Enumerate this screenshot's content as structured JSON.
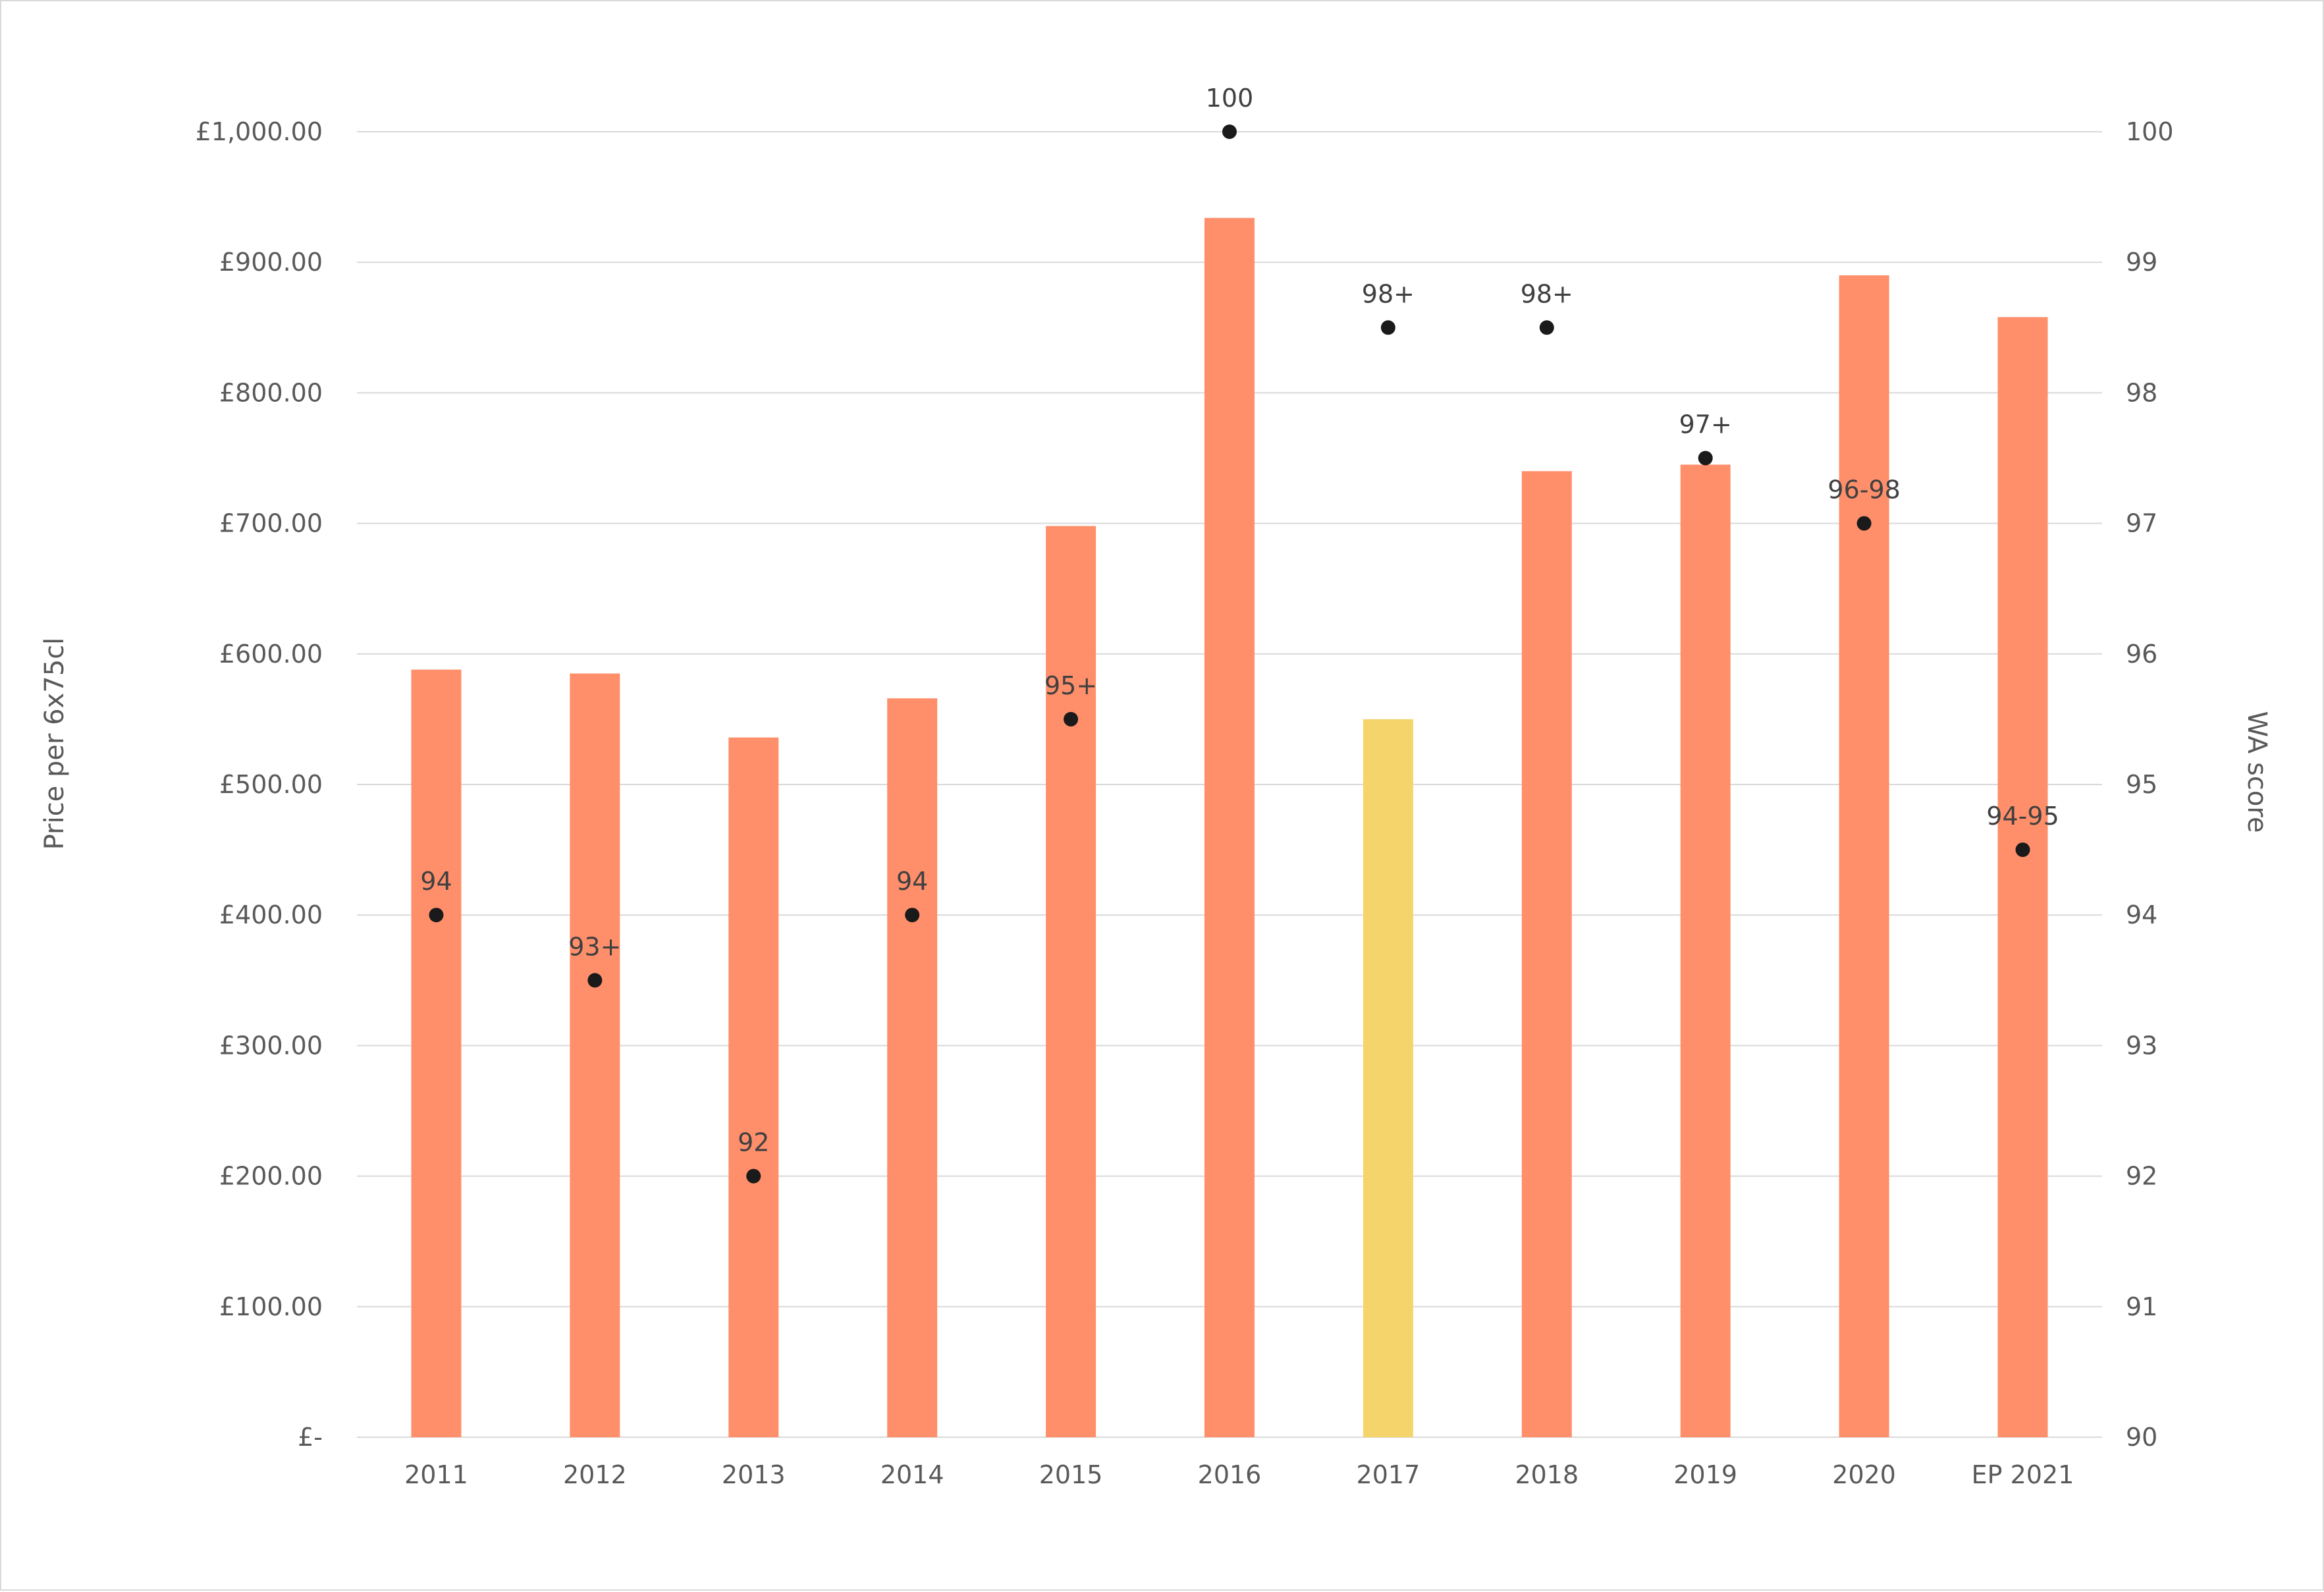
{
  "chart_data": {
    "type": "bar",
    "categories": [
      "2011",
      "2012",
      "2013",
      "2014",
      "2015",
      "2016",
      "2017",
      "2018",
      "2019",
      "2020",
      "EP 2021"
    ],
    "series": [
      {
        "type": "bar",
        "axis": "left",
        "values": [
          588,
          585,
          536,
          566,
          698,
          934,
          550,
          740,
          745,
          890,
          858
        ],
        "colors": [
          "#ff8f6b",
          "#ff8f6b",
          "#ff8f6b",
          "#ff8f6b",
          "#ff8f6b",
          "#ff8f6b",
          "#f5d56b",
          "#ff8f6b",
          "#ff8f6b",
          "#ff8f6b",
          "#ff8f6b"
        ]
      },
      {
        "type": "scatter",
        "axis": "right",
        "values": [
          94,
          93.5,
          92,
          94,
          95.5,
          100,
          98.5,
          98.5,
          97.5,
          97,
          94.5
        ],
        "labels": [
          "94",
          "93+",
          "92",
          "94",
          "95+",
          "100",
          "98+",
          "98+",
          "97+",
          "96-98",
          "94-95"
        ],
        "color": "#1a1a1a"
      }
    ],
    "ylabel": "Price per 6x75cl",
    "y2label": "WA score",
    "ylim": [
      0,
      1000
    ],
    "y2lim": [
      90,
      100
    ],
    "yticks": [
      {
        "value": 0,
        "label": "£-"
      },
      {
        "value": 100,
        "label": "£100.00"
      },
      {
        "value": 200,
        "label": "£200.00"
      },
      {
        "value": 300,
        "label": "£300.00"
      },
      {
        "value": 400,
        "label": "£400.00"
      },
      {
        "value": 500,
        "label": "£500.00"
      },
      {
        "value": 600,
        "label": "£600.00"
      },
      {
        "value": 700,
        "label": "£700.00"
      },
      {
        "value": 800,
        "label": "£800.00"
      },
      {
        "value": 900,
        "label": "£900.00"
      },
      {
        "value": 1000,
        "label": "£1,000.00"
      }
    ],
    "y2ticks": [
      "90",
      "91",
      "92",
      "93",
      "94",
      "95",
      "96",
      "97",
      "98",
      "99",
      "100"
    ],
    "grid": true,
    "gridColor": "#d9d9d9"
  }
}
